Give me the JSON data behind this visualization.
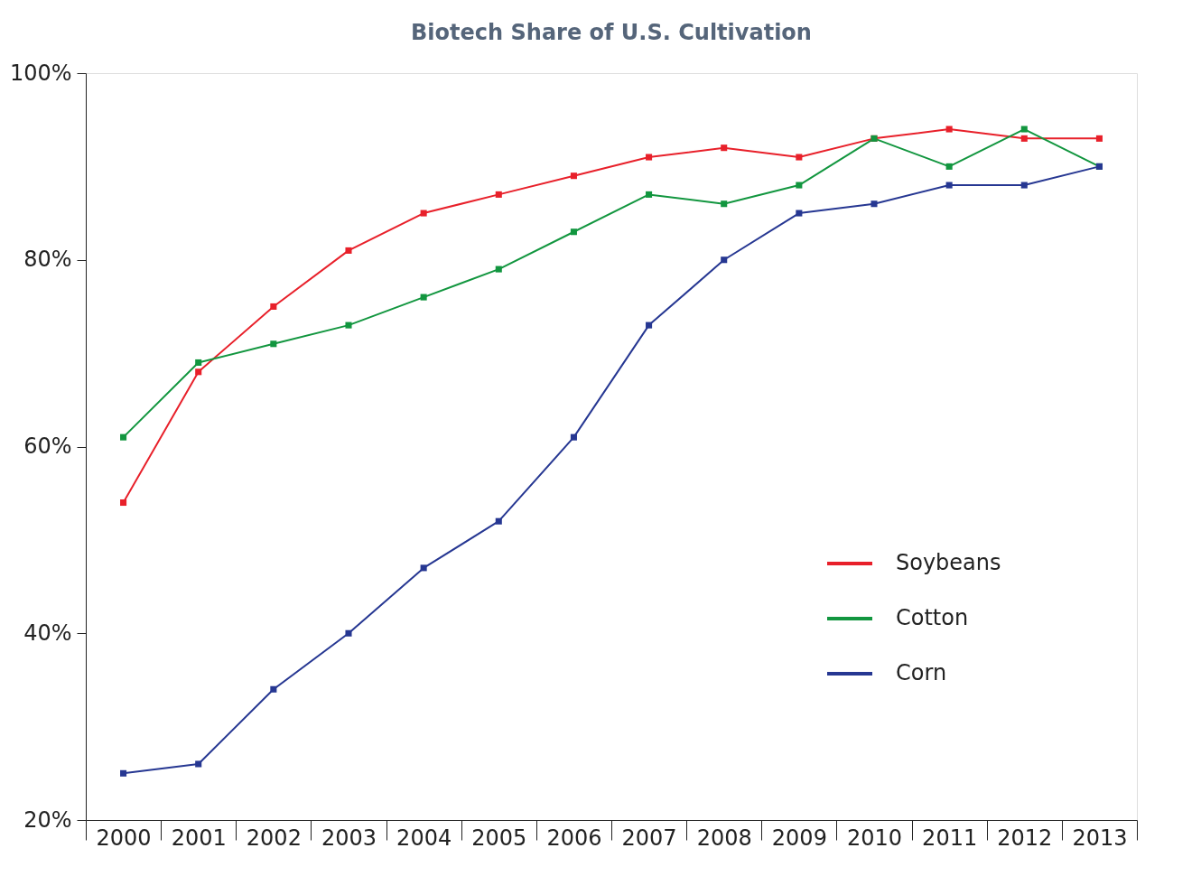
{
  "chart_data": {
    "type": "line",
    "title": "Biotech Share of U.S. Cultivation",
    "categories": [
      "2000",
      "2001",
      "2002",
      "2003",
      "2004",
      "2005",
      "2006",
      "2007",
      "2008",
      "2009",
      "2010",
      "2011",
      "2012",
      "2013"
    ],
    "series": [
      {
        "name": "Soybeans",
        "color": "#e8202a",
        "values": [
          54,
          68,
          75,
          81,
          85,
          87,
          89,
          91,
          92,
          91,
          93,
          94,
          93,
          93
        ]
      },
      {
        "name": "Cotton",
        "color": "#12963f",
        "values": [
          61,
          69,
          71,
          73,
          76,
          79,
          83,
          87,
          86,
          88,
          93,
          90,
          94,
          90
        ]
      },
      {
        "name": "Corn",
        "color": "#263792",
        "values": [
          25,
          26,
          34,
          40,
          47,
          52,
          61,
          73,
          80,
          85,
          86,
          88,
          88,
          90
        ]
      }
    ],
    "ylim": [
      20,
      100
    ],
    "yticks": [
      {
        "value": 20,
        "label": "20%"
      },
      {
        "value": 40,
        "label": "40%"
      },
      {
        "value": 60,
        "label": "60%"
      },
      {
        "value": 80,
        "label": "80%"
      },
      {
        "value": 100,
        "label": "100%"
      }
    ],
    "grid": false,
    "legend": "bottom right",
    "marker": "square",
    "line_style": "solid"
  }
}
